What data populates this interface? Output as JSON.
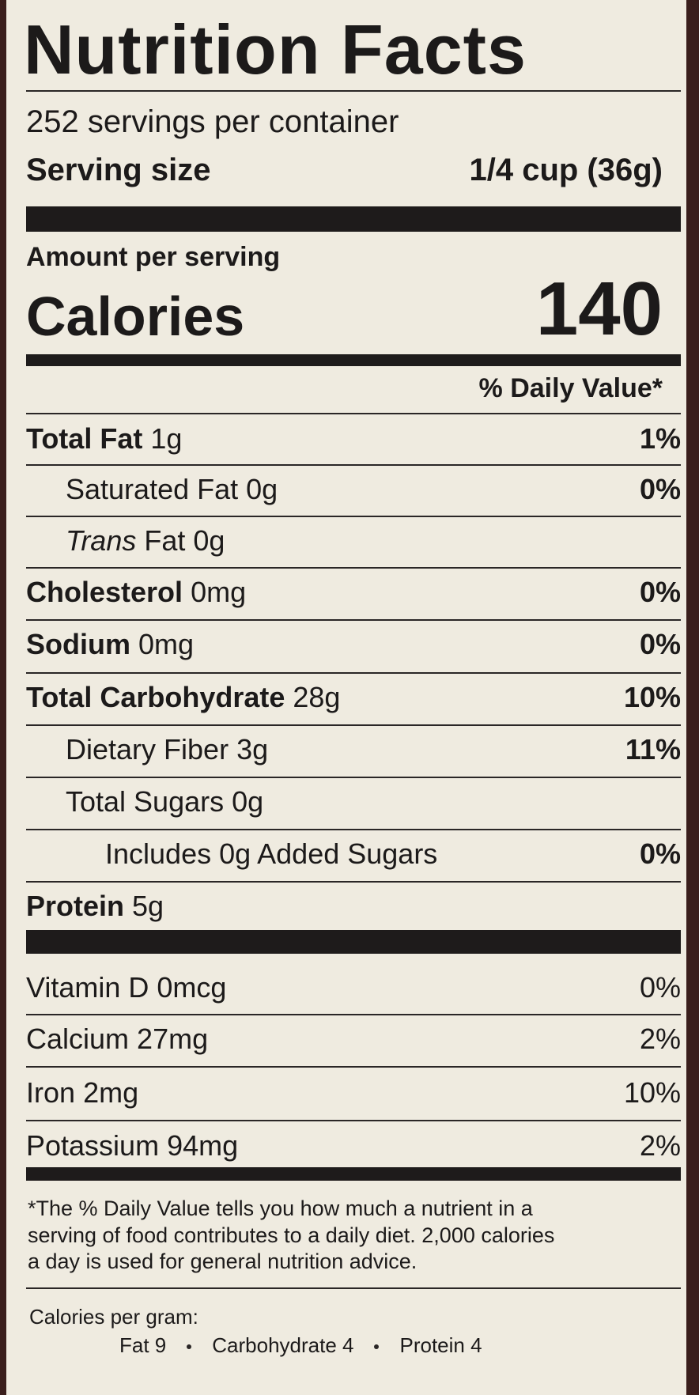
{
  "header": {
    "title": "Nutrition Facts",
    "servings": "252 servings per container",
    "serving_size_label": "Serving size",
    "serving_size_value": "1/4 cup (36g)"
  },
  "calories": {
    "amount_per_serving": "Amount per serving",
    "label": "Calories",
    "value": "140"
  },
  "daily_value_header": "% Daily Value*",
  "nutrients": [
    {
      "label": "Total Fat",
      "amount": "1g",
      "dv": "1%"
    },
    {
      "label": "Saturated Fat",
      "amount": "0g",
      "dv": "0%"
    },
    {
      "label_italic": "Trans",
      "label": "Fat",
      "amount": "0g"
    },
    {
      "label": "Cholesterol",
      "amount": "0mg",
      "dv": "0%"
    },
    {
      "label": "Sodium",
      "amount": "0mg",
      "dv": "0%"
    },
    {
      "label": "Total Carbohydrate",
      "amount": "28g",
      "dv": "10%"
    },
    {
      "label": "Dietary Fiber",
      "amount": "3g",
      "dv": "11%"
    },
    {
      "label": "Total Sugars",
      "amount": "0g"
    },
    {
      "label": "Includes 0g Added Sugars",
      "dv": "0%"
    },
    {
      "label": "Protein",
      "amount": "5g"
    }
  ],
  "vitamins": [
    {
      "label": "Vitamin D",
      "amount": "0mcg",
      "dv": "0%"
    },
    {
      "label": "Calcium",
      "amount": "27mg",
      "dv": "2%"
    },
    {
      "label": "Iron",
      "amount": "2mg",
      "dv": "10%"
    },
    {
      "label": "Potassium",
      "amount": "94mg",
      "dv": "2%"
    }
  ],
  "footnote": [
    "*The % Daily Value tells you how much a nutrient in a",
    "serving of food contributes to a daily diet. 2,000 calories",
    "a day is used for general nutrition advice."
  ],
  "calories_per_gram": {
    "label": "Calories per gram:",
    "items": [
      "Fat 9",
      "Carbohydrate 4",
      "Protein 4"
    ]
  }
}
